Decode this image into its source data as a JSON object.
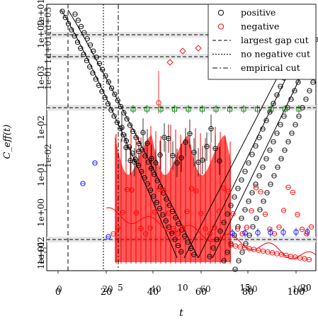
{
  "chart_data": {
    "type": "scatter",
    "title": "",
    "xlabel": "t",
    "ylabel": "C_eff(t)",
    "x_axes": [
      {
        "ticks": [
          0,
          20,
          40,
          60,
          80,
          100
        ]
      },
      {
        "ticks": [
          0,
          20,
          40,
          60,
          80,
          100
        ]
      },
      {
        "ticks": [
          5,
          10,
          15,
          20
        ]
      }
    ],
    "y_ticks_left": [
      "1e+02",
      "1e+01",
      "1e+00",
      "1e-01",
      "1e-02",
      "1e-03"
    ],
    "y_ticks_right": [
      "1d+03",
      "1d+01",
      "1e-01",
      "1e-02"
    ],
    "legend": {
      "position": "top-right",
      "entries": [
        {
          "label": "positive",
          "symbol": "circle",
          "color": "#000000"
        },
        {
          "label": "negative",
          "symbol": "circle",
          "color": "#ff0000"
        },
        {
          "label": "largest gap cut",
          "symbol": "dashed-line",
          "color": "#000000"
        },
        {
          "label": "no negative cut",
          "symbol": "dotted-line",
          "color": "#000000"
        },
        {
          "label": "empirical cut",
          "symbol": "dashdot-line",
          "color": "#000000"
        }
      ]
    },
    "cuts": {
      "largest_gap_cut_x": 4,
      "no_negative_cut_x": 19,
      "empirical_cut_x": 25
    },
    "series": [
      {
        "name": "positive",
        "color": "#000000",
        "x": [
          1,
          2,
          3,
          4,
          5,
          6,
          7,
          8,
          9,
          10,
          11,
          12,
          13,
          14,
          15,
          16,
          17,
          18,
          19,
          20,
          21,
          22,
          23,
          24,
          25,
          60,
          63,
          66,
          69,
          72,
          75,
          78,
          81,
          84,
          87,
          90,
          93,
          96,
          99
        ],
        "y": [
          1000,
          950,
          700,
          500,
          350,
          240,
          170,
          120,
          85,
          60,
          42,
          30,
          21,
          15,
          10.5,
          7.5,
          5.3,
          3.7,
          2.6,
          1.8,
          1.3,
          0.9,
          0.65,
          0.45,
          0.32,
          0.05,
          0.09,
          0.16,
          0.28,
          0.5,
          0.9,
          1.6,
          2.8,
          5,
          9,
          16,
          28,
          50,
          90
        ]
      },
      {
        "name": "negative",
        "color": "#ff0000",
        "x": [
          24,
          26,
          28,
          30,
          32,
          34,
          36,
          38,
          40,
          42,
          44,
          46,
          48,
          50,
          52,
          54,
          56,
          58,
          60,
          62,
          64,
          66,
          68,
          70
        ],
        "y": [
          0.4,
          0.8,
          1.5,
          2.5,
          2.0,
          0.7,
          0.3,
          0.15,
          0.2,
          0.5,
          1.2,
          2.2,
          2.0,
          1.0,
          0.4,
          0.2,
          0.3,
          0.7,
          1.5,
          2.4,
          1.8,
          0.9,
          0.5,
          0.3
        ]
      },
      {
        "name": "",
        "color": "#008000",
        "x": [
          8,
          9,
          10,
          11,
          12,
          13,
          14,
          15,
          16,
          17,
          18,
          19,
          20
        ],
        "y": [
          14,
          14.5,
          14.8,
          15,
          15.1,
          15.2,
          15.2,
          15.3,
          15.3,
          15.3,
          15.3,
          15.4,
          15.4
        ]
      },
      {
        "name": "",
        "color": "#0000ff",
        "x": [
          3,
          4,
          5,
          14,
          15,
          16,
          17,
          18,
          19,
          20
        ],
        "y": [
          0.9,
          1.6,
          2.4,
          0.0018,
          0.0019,
          0.00195,
          0.002,
          0.0021,
          0.0021,
          0.0022
        ]
      }
    ]
  }
}
